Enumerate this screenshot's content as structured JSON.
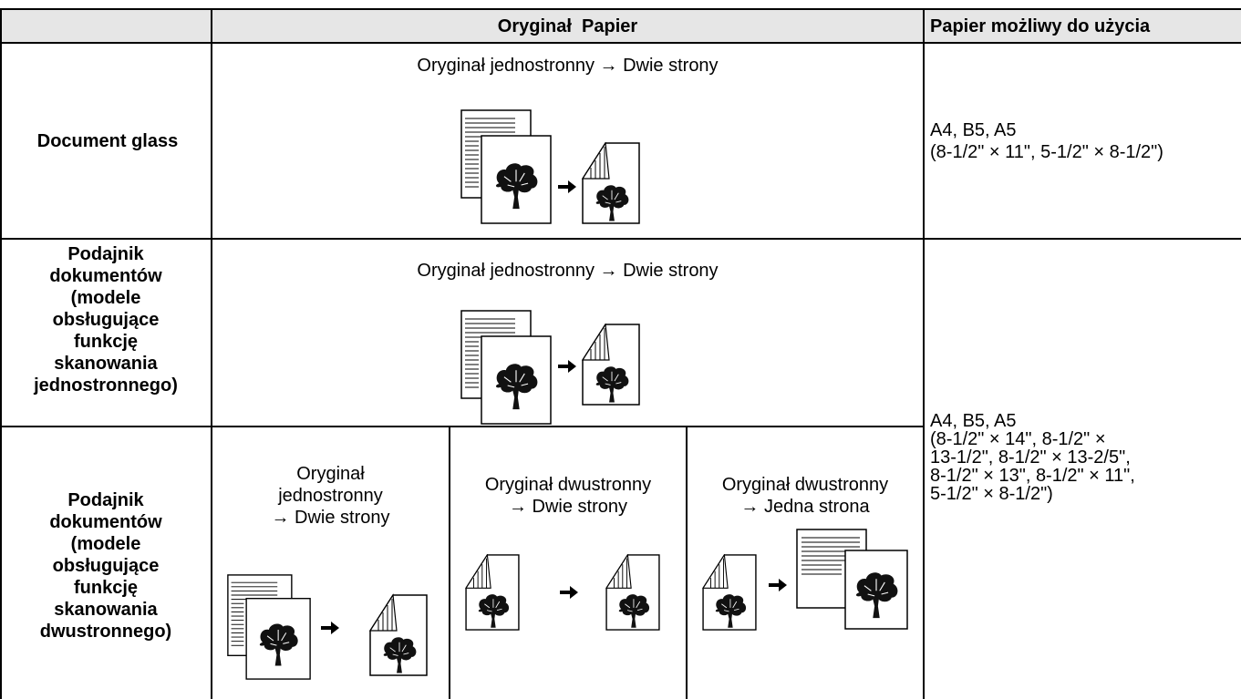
{
  "header": {
    "cells": [
      "Oryginał  Papier",
      "Papier możliwy do użycia"
    ]
  },
  "table": {
    "rows": [
      {
        "label": [
          "Document glass"
        ],
        "original": [
          "Oryginał jednostronny → Dwie strony"
        ],
        "paper": [
          "A4, B5, A5",
          "(8-1/2\" × 11\", 5-1/2\" × 8-1/2\")"
        ]
      },
      {
        "label": [
          "Podajnik",
          "dokumentów",
          "(modele",
          "obsługujące",
          "funkcję",
          "skanowania",
          "jednostronnego)"
        ],
        "original": [
          "Oryginał jednostronny → Dwie strony"
        ],
        "paper": [
          "A4, B5, A5",
          "(8-1/2\" × 14\", 8-1/2\" ×",
          "13-1/2\", 8-1/2\" × 13-2/5\",",
          "8-1/2\" × 13\", 8-1/2\" × 11\",",
          "5-1/2\" × 8-1/2\")"
        ]
      },
      {
        "label": [
          "Podajnik",
          "dokumentów",
          "(modele",
          "obsługujące",
          "funkcję",
          "skanowania",
          "dwustronnego)"
        ],
        "modes": [
          [
            "Oryginał",
            "jednostronny",
            "→ Dwie strony"
          ],
          [
            "Oryginał dwustronny",
            "→ Dwie strony"
          ],
          [
            "Oryginał dwustronny",
            "→ Jedna strona"
          ]
        ]
      }
    ]
  }
}
